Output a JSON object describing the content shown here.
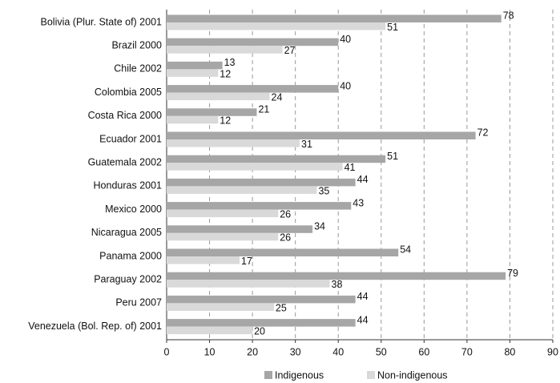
{
  "chart_data": {
    "type": "hbar",
    "categories": [
      "Bolivia (Plur. State of) 2001",
      "Brazil 2000",
      "Chile 2002",
      "Colombia 2005",
      "Costa Rica 2000",
      "Ecuador 2001",
      "Guatemala 2002",
      "Honduras 2001",
      "Mexico 2000",
      "Nicaragua 2005",
      "Panama 2000",
      "Paraguay 2002",
      "Peru 2007",
      "Venezuela (Bol. Rep. of) 2001"
    ],
    "series": [
      {
        "name": "Indigenous",
        "color": "#a6a6a6",
        "values": [
          78,
          40,
          13,
          40,
          21,
          72,
          51,
          44,
          43,
          34,
          54,
          79,
          44,
          44
        ]
      },
      {
        "name": "Non-indigenous",
        "color": "#d9d9d9",
        "values": [
          51,
          27,
          12,
          24,
          12,
          31,
          41,
          35,
          26,
          26,
          17,
          38,
          25,
          20
        ]
      }
    ],
    "xlim": [
      0,
      90
    ],
    "xticks": [
      0,
      10,
      20,
      30,
      40,
      50,
      60,
      70,
      80,
      90
    ],
    "grid": true,
    "legend": "bottom"
  }
}
